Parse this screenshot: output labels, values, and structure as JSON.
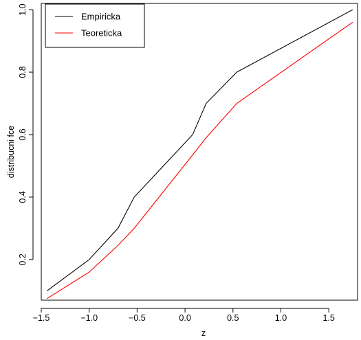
{
  "chart_data": {
    "type": "line",
    "title": "",
    "xlabel": "z",
    "ylabel": "distribucni fce",
    "xlim": [
      -1.5,
      1.8
    ],
    "ylim": [
      0.07,
      1.02
    ],
    "x_ticks": [
      "−1.5",
      "−1.0",
      "−0.5",
      "0.0",
      "0.5",
      "1.0",
      "1.5"
    ],
    "x_tick_values": [
      -1.5,
      -1.0,
      -0.5,
      0.0,
      0.5,
      1.0,
      1.5
    ],
    "y_ticks": [
      "0.2",
      "0.4",
      "0.6",
      "0.8",
      "1.0"
    ],
    "y_tick_values": [
      0.2,
      0.4,
      0.6,
      0.8,
      1.0
    ],
    "grid": false,
    "legend_position": "top-left",
    "series": [
      {
        "name": "Empiricka",
        "color": "#000000",
        "x": [
          -1.44,
          -1.0,
          -0.7,
          -0.53,
          0.08,
          0.22,
          0.54,
          1.75
        ],
        "y": [
          0.1,
          0.2,
          0.3,
          0.4,
          0.6,
          0.7,
          0.8,
          1.0
        ]
      },
      {
        "name": "Teoreticka",
        "color": "#ff0000",
        "x": [
          -1.44,
          -1.0,
          -0.7,
          -0.53,
          0.08,
          0.22,
          0.54,
          1.75
        ],
        "y": [
          0.075,
          0.16,
          0.245,
          0.3,
          0.535,
          0.59,
          0.7,
          0.96
        ]
      }
    ]
  }
}
